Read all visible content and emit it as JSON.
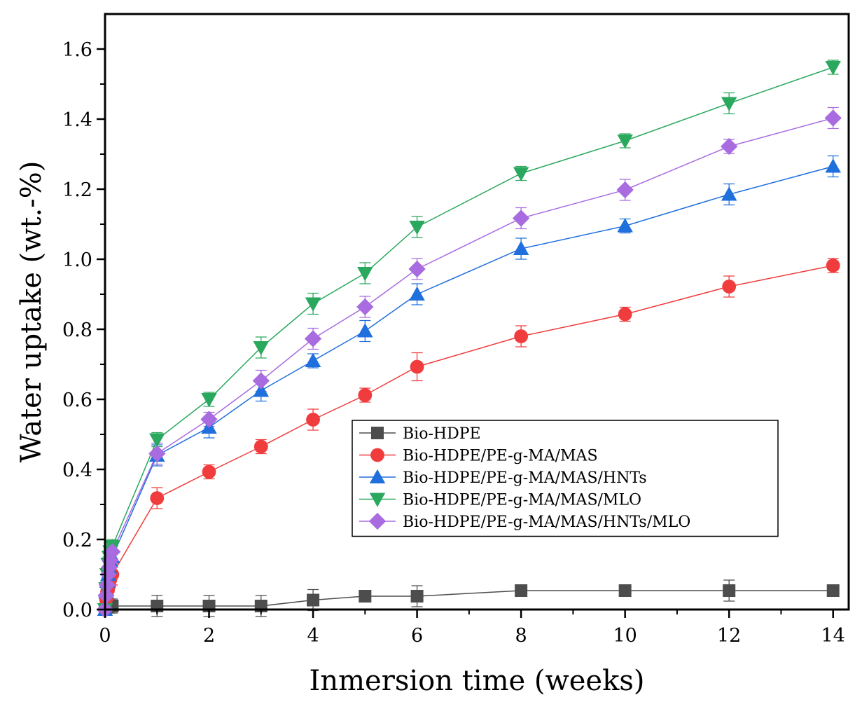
{
  "chart_data": {
    "type": "line",
    "xlabel": "Inmersion time (weeks)",
    "ylabel": "Water uptake (wt.-%)",
    "xlim": [
      0,
      14.3
    ],
    "ylim": [
      0,
      1.7
    ],
    "x_ticks": [
      "0",
      "2",
      "4",
      "6",
      "8",
      "10",
      "12",
      "14"
    ],
    "y_ticks": [
      "0.0",
      "0.2",
      "0.4",
      "0.6",
      "0.8",
      "1.0",
      "1.2",
      "1.4",
      "1.6"
    ],
    "x_tick_values": [
      0,
      2,
      4,
      6,
      8,
      10,
      12,
      14
    ],
    "y_tick_values": [
      0,
      0.2,
      0.4,
      0.6,
      0.8,
      1.0,
      1.2,
      1.4,
      1.6
    ],
    "legend_position": "center-right",
    "grid": false,
    "series": [
      {
        "name": "Bio-HDPE",
        "color": "#4d4d4d",
        "marker": "square",
        "x": [
          0,
          0.02,
          0.04,
          0.06,
          0.08,
          0.1,
          0.14,
          1,
          2,
          3,
          4,
          5,
          6,
          8,
          10,
          12,
          14
        ],
        "y": [
          0.0,
          0.01,
          0.01,
          0.01,
          0.01,
          0.01,
          0.01,
          0.01,
          0.01,
          0.01,
          0.027,
          0.038,
          0.038,
          0.054,
          0.054,
          0.054,
          0.054
        ],
        "err": [
          0,
          0.02,
          0.02,
          0.02,
          0.02,
          0.02,
          0.02,
          0.03,
          0.03,
          0.03,
          0.03,
          0.01,
          0.03,
          0.01,
          0.01,
          0.03,
          0.01
        ]
      },
      {
        "name": "Bio-HDPE/PE-g-MA/MAS",
        "color": "#f03c3c",
        "marker": "circle",
        "x": [
          0,
          0.02,
          0.04,
          0.06,
          0.08,
          0.1,
          0.14,
          1,
          2,
          3,
          4,
          5,
          6,
          8,
          10,
          12,
          14
        ],
        "y": [
          0.0,
          0.03,
          0.05,
          0.06,
          0.07,
          0.085,
          0.1,
          0.318,
          0.393,
          0.465,
          0.542,
          0.612,
          0.693,
          0.78,
          0.843,
          0.922,
          0.982
        ],
        "err": [
          0,
          0.02,
          0.02,
          0.02,
          0.02,
          0.02,
          0.03,
          0.03,
          0.02,
          0.02,
          0.03,
          0.02,
          0.04,
          0.03,
          0.02,
          0.03,
          0.02
        ]
      },
      {
        "name": "Bio-HDPE/PE-g-MA/MAS/HNTs",
        "color": "#1f6fdc",
        "marker": "triangle-up",
        "x": [
          0,
          0.02,
          0.04,
          0.06,
          0.08,
          0.1,
          0.14,
          1,
          2,
          3,
          4,
          5,
          6,
          8,
          10,
          12,
          14
        ],
        "y": [
          0.0,
          0.05,
          0.08,
          0.1,
          0.12,
          0.14,
          0.15,
          0.44,
          0.52,
          0.625,
          0.71,
          0.795,
          0.9,
          1.03,
          1.095,
          1.185,
          1.265
        ],
        "err": [
          0,
          0.02,
          0.02,
          0.02,
          0.02,
          0.02,
          0.03,
          0.03,
          0.03,
          0.03,
          0.02,
          0.03,
          0.03,
          0.03,
          0.02,
          0.03,
          0.03
        ]
      },
      {
        "name": "Bio-HDPE/PE-g-MA/MAS/MLO",
        "color": "#2aa85e",
        "marker": "triangle-down",
        "x": [
          0,
          0.02,
          0.04,
          0.06,
          0.08,
          0.1,
          0.14,
          1,
          2,
          3,
          4,
          5,
          6,
          8,
          10,
          12,
          14
        ],
        "y": [
          0.0,
          0.06,
          0.1,
          0.13,
          0.15,
          0.165,
          0.18,
          0.485,
          0.6,
          0.748,
          0.873,
          0.96,
          1.092,
          1.245,
          1.338,
          1.445,
          1.548
        ],
        "err": [
          0,
          0.02,
          0.02,
          0.02,
          0.02,
          0.02,
          0.02,
          0.02,
          0.02,
          0.03,
          0.03,
          0.03,
          0.03,
          0.02,
          0.02,
          0.03,
          0.02
        ]
      },
      {
        "name": "Bio-HDPE/PE-g-MA/MAS/HNTs/MLO",
        "color": "#a86be0",
        "marker": "diamond",
        "x": [
          0,
          0.02,
          0.04,
          0.06,
          0.08,
          0.1,
          0.14,
          1,
          2,
          3,
          4,
          5,
          6,
          8,
          10,
          12,
          14
        ],
        "y": [
          0.0,
          0.04,
          0.07,
          0.1,
          0.12,
          0.14,
          0.165,
          0.445,
          0.543,
          0.653,
          0.773,
          0.864,
          0.972,
          1.117,
          1.198,
          1.322,
          1.403
        ],
        "err": [
          0,
          0.02,
          0.02,
          0.02,
          0.02,
          0.02,
          0.02,
          0.03,
          0.02,
          0.03,
          0.03,
          0.03,
          0.03,
          0.03,
          0.03,
          0.02,
          0.03
        ]
      }
    ]
  }
}
